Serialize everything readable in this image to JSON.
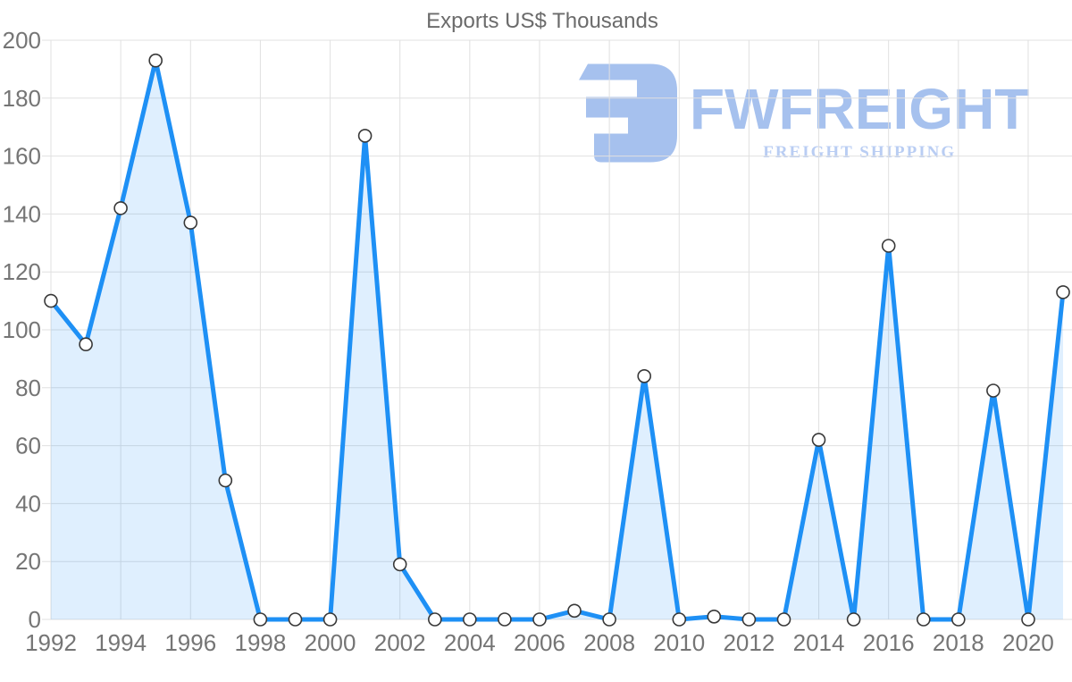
{
  "title": "Exports US$ Thousands",
  "watermark": {
    "brand": "FWFREIGHT",
    "tagline": "FREIGHT SHIPPING",
    "logo_color": "#a6c1ee",
    "brand_color": "#a6c1ee",
    "tagline_color": "#b9cdf3"
  },
  "colors": {
    "line": "#1e90f5",
    "area_fill": "rgba(30,144,245,0.14)",
    "grid": "#e0e0e0",
    "axis_text": "#757575",
    "title_text": "#6b6b6b",
    "marker_fill": "#ffffff",
    "marker_stroke": "#383838"
  },
  "chart_data": {
    "type": "area",
    "title": "Exports US$ Thousands",
    "xlabel": "",
    "ylabel": "",
    "x": [
      1992,
      1993,
      1994,
      1995,
      1996,
      1997,
      1998,
      1999,
      2000,
      2001,
      2002,
      2003,
      2004,
      2005,
      2006,
      2007,
      2008,
      2009,
      2010,
      2011,
      2012,
      2013,
      2014,
      2015,
      2016,
      2017,
      2018,
      2019,
      2020,
      2021
    ],
    "values": [
      110,
      95,
      142,
      193,
      137,
      48,
      0,
      0,
      0,
      167,
      19,
      0,
      0,
      0,
      0,
      3,
      0,
      84,
      0,
      1,
      0,
      0,
      62,
      0,
      129,
      0,
      0,
      79,
      0,
      113
    ],
    "x_tick_labels": [
      "1992",
      "1994",
      "1996",
      "1998",
      "2000",
      "2002",
      "2004",
      "2006",
      "2008",
      "2010",
      "2012",
      "2014",
      "2016",
      "2018",
      "2020"
    ],
    "ylim": [
      0,
      200
    ],
    "y_tick_step": 20,
    "grid": true,
    "legend": false,
    "marker": "circle"
  }
}
